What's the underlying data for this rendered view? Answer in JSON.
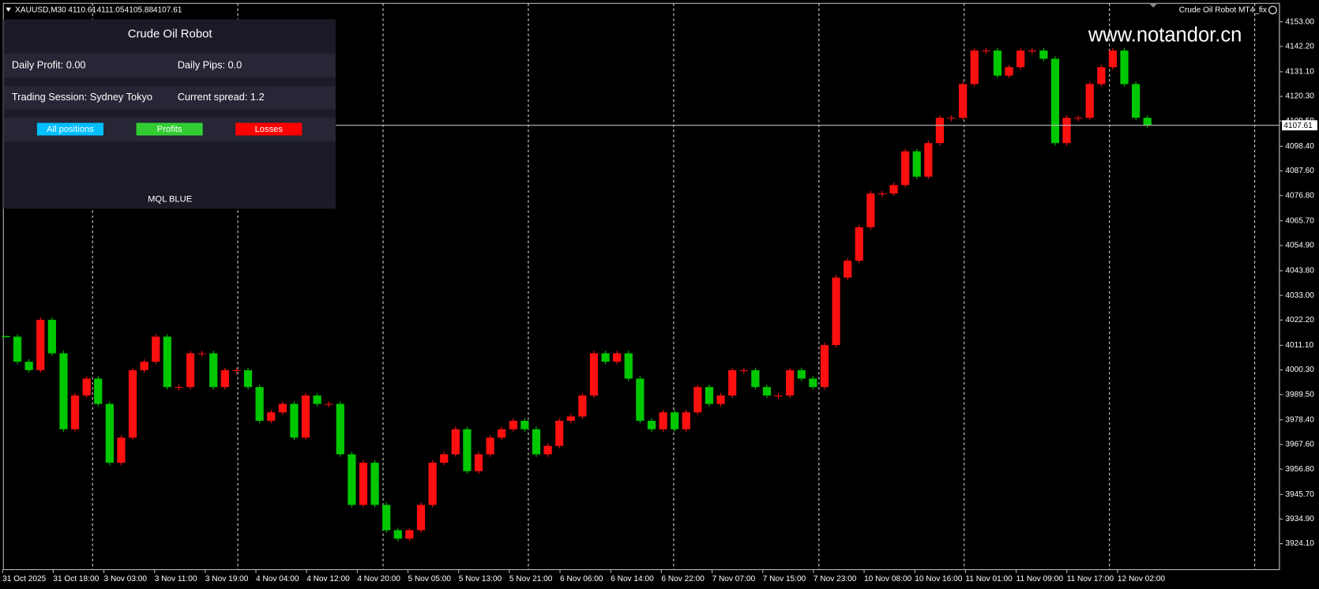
{
  "header": {
    "symbol": "XAUUSD,M30",
    "ohlc": [
      4110.61,
      4111.05,
      4105.88,
      4107.61
    ],
    "expert": "Crude Oil Robot MT4_fix"
  },
  "watermark": "www.notandor.cn",
  "panel": {
    "title": "Crude Oil Robot",
    "daily_profit": "Daily Profit: 0.00",
    "daily_pips": "Daily Pips:  0.0",
    "session": "Trading Session: Sydney Tokyo",
    "spread": "Current spread: 1.2",
    "buttons": [
      "All positions",
      "Profits",
      "Losses"
    ],
    "footer": "MQL BLUE"
  },
  "chart_data": {
    "type": "candlestick",
    "up_color": "#ff1010",
    "down_color": "#00c800",
    "values": [
      4014.9,
      4003.9,
      4000.2,
      4022.3,
      4007.6,
      3974.3,
      3989.1,
      3996.5,
      3985.4,
      3959.6,
      3970.6,
      4000.2,
      4003.9,
      4014.9,
      3992.8,
      3992.8,
      4007.6,
      4007.6,
      3992.8,
      4000.2,
      4000.2,
      3992.8,
      3978.0,
      3981.7,
      3985.4,
      3970.6,
      3989.1,
      3985.4,
      3985.4,
      3963.3,
      3941.1,
      3959.6,
      3941.1,
      3930.0,
      3926.3,
      3930.0,
      3941.1,
      3959.6,
      3963.3,
      3974.3,
      3955.9,
      3963.3,
      3970.6,
      3974.3,
      3978.0,
      3974.3,
      3963.3,
      3967.0,
      3978.0,
      3979.9,
      3989.1,
      4007.6,
      4003.9,
      4007.6,
      3996.5,
      3978.0,
      3974.3,
      3981.7,
      3974.3,
      3981.7,
      3992.8,
      3985.4,
      3989.1,
      4000.2,
      4000.2,
      3992.8,
      3989.1,
      3989.1,
      4000.2,
      3996.5,
      3992.8,
      4011.2,
      4040.8,
      4048.2,
      4062.9,
      4077.7,
      4077.7,
      4081.4,
      4096.2,
      4085.1,
      4099.8,
      4110.9,
      4110.9,
      4125.7,
      4140.4,
      4140.4,
      4129.4,
      4133.1,
      4140.4,
      4140.4,
      4136.8,
      4099.8,
      4110.9,
      4110.9,
      4125.7,
      4133.1,
      4140.4,
      4125.7,
      4110.9,
      4107.6
    ],
    "time_labels": [
      "31 Oct 2025",
      "31 Oct 18:00",
      "3 Nov 03:00",
      "3 Nov 11:00",
      "3 Nov 19:00",
      "4 Nov 04:00",
      "4 Nov 12:00",
      "4 Nov 20:00",
      "5 Nov 05:00",
      "5 Nov 13:00",
      "5 Nov 21:00",
      "6 Nov 06:00",
      "6 Nov 14:00",
      "6 Nov 22:00",
      "7 Nov 07:00",
      "7 Nov 15:00",
      "7 Nov 23:00",
      "10 Nov 08:00",
      "10 Nov 16:00",
      "11 Nov 01:00",
      "11 Nov 09:00",
      "11 Nov 17:00",
      "12 Nov 02:00"
    ],
    "ylim": [
      3912.7,
      4161.1
    ],
    "yticks": [
      {
        "value": 4153,
        "label": "4153.00"
      },
      {
        "value": 4142.2,
        "label": "4142.20"
      },
      {
        "value": 4131.1,
        "label": "4131.10"
      },
      {
        "value": 4120.3,
        "label": "4120.30"
      },
      {
        "value": 4109.5,
        "label": "4109.50"
      },
      {
        "value": 4098.4,
        "label": "4098.40"
      },
      {
        "value": 4087.6,
        "label": "4087.60"
      },
      {
        "value": 4076.8,
        "label": "4076.80"
      },
      {
        "value": 4065.7,
        "label": "4065.70"
      },
      {
        "value": 4054.9,
        "label": "4054.90"
      },
      {
        "value": 4043.8,
        "label": "4043.80"
      },
      {
        "value": 4033,
        "label": "4033.00"
      },
      {
        "value": 4022.2,
        "label": "4022.20"
      },
      {
        "value": 4011.1,
        "label": "4011.10"
      },
      {
        "value": 4000.3,
        "label": "4000.30"
      },
      {
        "value": 3989.5,
        "label": "3989.50"
      },
      {
        "value": 3978.4,
        "label": "3978.40"
      },
      {
        "value": 3967.6,
        "label": "3967.60"
      },
      {
        "value": 3956.8,
        "label": "3956.80"
      },
      {
        "value": 3945.7,
        "label": "3945.70"
      },
      {
        "value": 3934.9,
        "label": "3934.90"
      },
      {
        "value": 3924.1,
        "label": "3924.10"
      }
    ],
    "current_price": 4107.61,
    "grid": false
  }
}
